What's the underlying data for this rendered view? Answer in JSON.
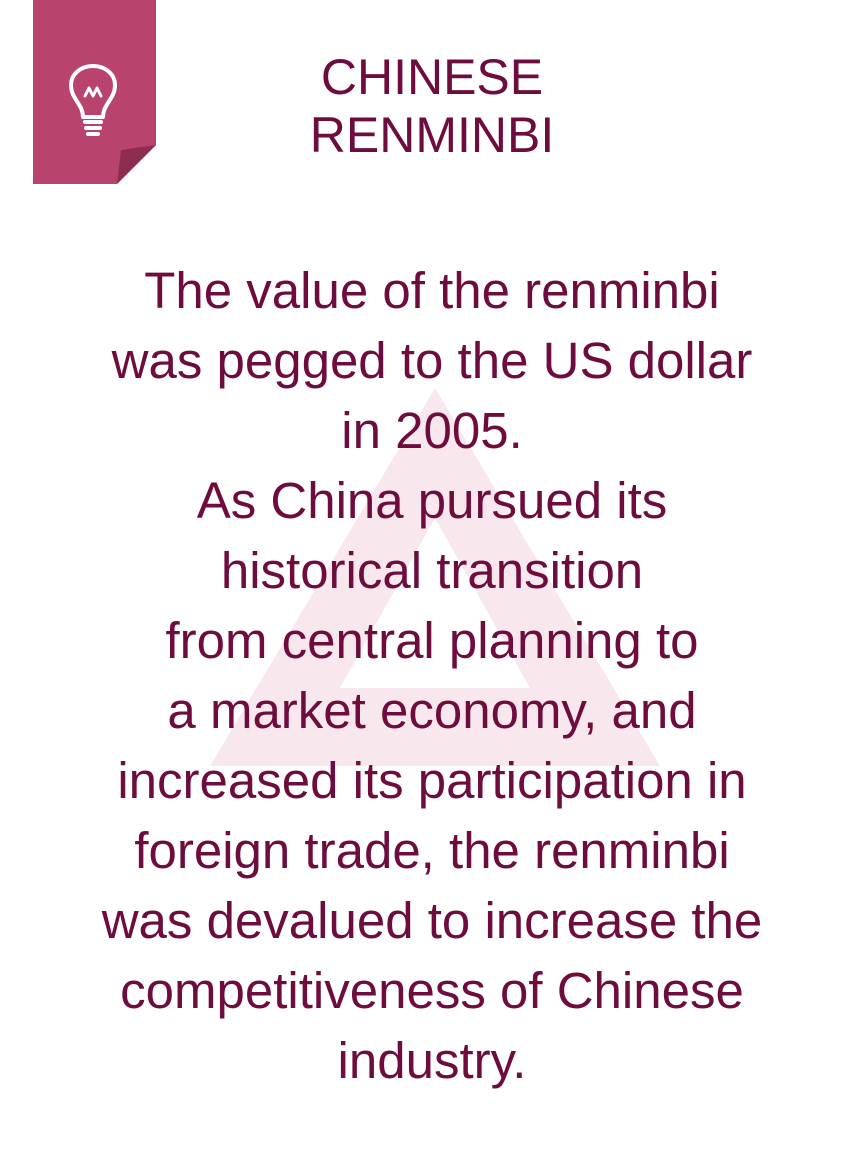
{
  "badge": {
    "icon": "lightbulb-icon",
    "color": "#b8436e",
    "fold_color": "#8f2c52"
  },
  "watermark": {
    "icon": "triangle-logo-icon",
    "color": "#f8e8ee"
  },
  "title": {
    "lines": [
      "CHINESE",
      "RENMINBI"
    ]
  },
  "body": {
    "lines": [
      "The value of the renminbi",
      "was pegged to the US dollar",
      "in 2005.",
      "As China pursued its",
      "historical transition",
      "from central planning to",
      "a market economy, and",
      "increased its participation in",
      "foreign trade, the renminbi",
      "was devalued to increase the",
      "competitiveness of Chinese",
      "industry."
    ]
  },
  "colors": {
    "text": "#6e0c3e",
    "background": "#ffffff"
  }
}
